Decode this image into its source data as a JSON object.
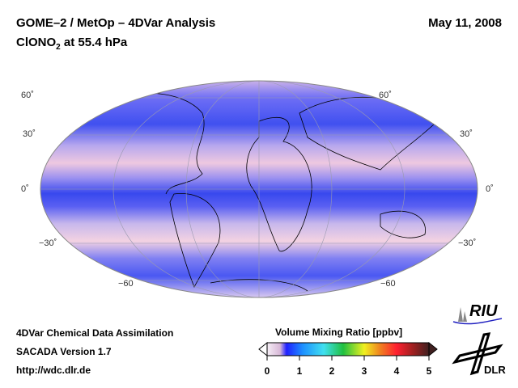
{
  "header": {
    "title": "GOME–2 / MetOp – 4DVar Analysis",
    "species": "ClONO",
    "species_sub": "2",
    "level": " at 55.4 hPa",
    "date": "May 11, 2008"
  },
  "map": {
    "projection": "Hammer/Aitoff global",
    "lat_labels_left": [
      "60˚",
      "30˚",
      "0˚",
      "−30˚",
      "−60"
    ],
    "lat_labels_right": [
      "60˚",
      "30˚",
      "0˚",
      "−30˚",
      "−60"
    ],
    "colors": {
      "low": "#3a48f0",
      "mid": "#8a8cf5",
      "high": "#f3cde0"
    }
  },
  "footer": {
    "line1": "4DVar Chemical Data Assimilation",
    "line2": "SACADA Version 1.7",
    "line3": "http://wdc.dlr.de"
  },
  "colorbar": {
    "title": "Volume Mixing Ratio [ppbv]",
    "ticks": [
      "0",
      "1",
      "2",
      "3",
      "4",
      "5"
    ],
    "range": [
      0,
      5
    ],
    "stops": [
      "#f5eef5",
      "#d8b8d8",
      "#2020ff",
      "#1e90ff",
      "#40e0f0",
      "#20c040",
      "#f0f020",
      "#f08020",
      "#ff2030",
      "#802020",
      "#402020"
    ]
  },
  "logos": {
    "riu": "RIU",
    "dlr": "DLR"
  }
}
